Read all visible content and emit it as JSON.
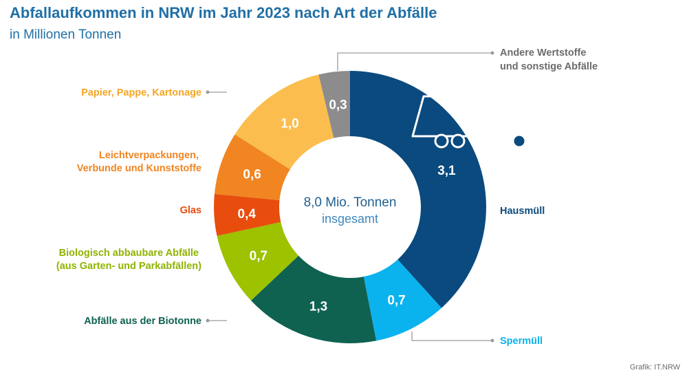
{
  "chart_data": {
    "type": "pie",
    "donut": true,
    "title": "Abfallaufkommen in NRW im Jahr 2023 nach Art der Abfälle",
    "subtitle": "in Millionen Tonnen",
    "unit": "Millionen Tonnen",
    "center_value": "8,0 Mio. Tonnen",
    "center_label": "insgesamt",
    "slices": [
      {
        "id": "hausmuell",
        "label_lines": [
          "Hausmüll"
        ],
        "value": 3.1,
        "value_label": "3,1",
        "color": "#0a4a7e"
      },
      {
        "id": "sperrmuell",
        "label_lines": [
          "Spermüll"
        ],
        "value": 0.7,
        "value_label": "0,7",
        "color": "#0bb3ee"
      },
      {
        "id": "biotonne",
        "label_lines": [
          "Abfälle aus der Biotonne"
        ],
        "value": 1.3,
        "value_label": "1,3",
        "color": "#0f6150"
      },
      {
        "id": "bio-garten",
        "label_lines": [
          "Biologisch abbaubare Abfälle",
          "(aus Garten- und Parkabfällen)"
        ],
        "value": 0.7,
        "value_label": "0,7",
        "color": "#9cc200"
      },
      {
        "id": "glas",
        "label_lines": [
          "Glas"
        ],
        "value": 0.4,
        "value_label": "0,4",
        "color": "#e84d0e"
      },
      {
        "id": "leichtverpackungen",
        "label_lines": [
          "Leichtverpackungen,",
          "Verbunde und Kunststoffe"
        ],
        "value": 0.6,
        "value_label": "0,6",
        "color": "#f08522"
      },
      {
        "id": "papier",
        "label_lines": [
          "Papier, Pappe, Kartonage"
        ],
        "value": 1.0,
        "value_label": "1,0",
        "color": "#fbbd4d"
      },
      {
        "id": "andere",
        "label_lines": [
          "Andere Wertstoffe",
          "und sonstige Abfälle"
        ],
        "value": 0.3,
        "value_label": "0,3",
        "color": "#8c8c8c"
      }
    ],
    "label_colors": {
      "hausmuell": "#0a4a7e",
      "sperrmuell": "#0bb3ee",
      "biotonne": "#0f6150",
      "bio-garten": "#8fb300",
      "glas": "#e84d0e",
      "leichtverpackungen": "#f08522",
      "papier": "#f5a623",
      "andere": "#6b6b6b"
    },
    "leader_line_color": "#9a9a9a",
    "icon": "garbage-truck-icon"
  },
  "footer": {
    "credit": "Grafik: IT.NRW"
  }
}
